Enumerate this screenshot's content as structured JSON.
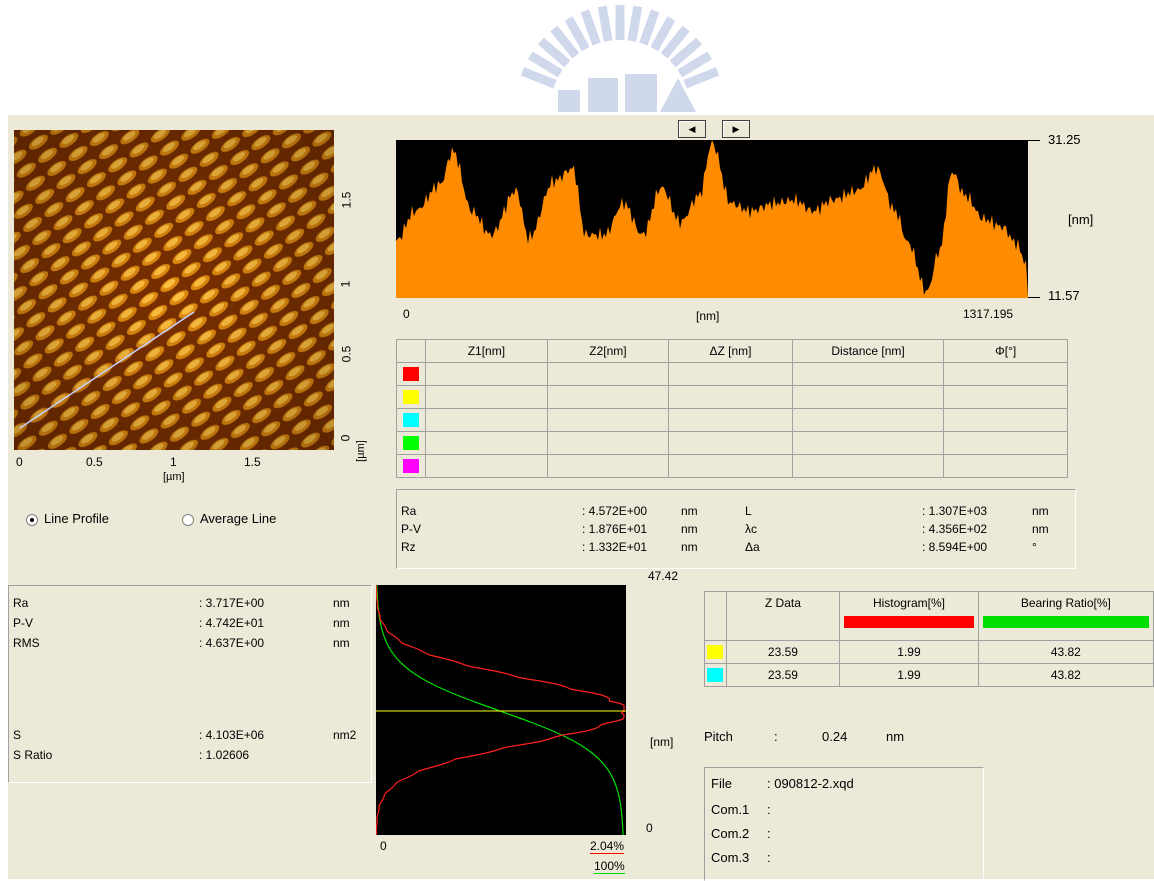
{
  "colors": {
    "profile_fill": "#ff8c00",
    "histogram": "#ff0000",
    "bearing": "#00e000",
    "cursor_yellow": "#ffff00",
    "cursor_cyan": "#00ffff",
    "cursor_red": "#ff0000",
    "cursor_green": "#00ff00",
    "cursor_magenta": "#ff00ff"
  },
  "afm_image": {
    "y_ticks": [
      "1.5",
      "1",
      "0.5",
      "0"
    ],
    "y_unit": "[µm]",
    "x_ticks": [
      "0",
      "0.5",
      "1",
      "1.5"
    ],
    "x_unit": "[µm]"
  },
  "profile_nav": {
    "prev_icon": "◀",
    "next_icon": "▶"
  },
  "profile": {
    "z_max": "31.25",
    "z_min": "11.57",
    "z_unit": "[nm]",
    "x_start": "0",
    "x_unit": "[nm]",
    "x_end": "1317.195"
  },
  "cursor_table": {
    "headers": [
      "Z1[nm]",
      "Z2[nm]",
      "ΔZ [nm]",
      "Distance [nm]",
      "Φ[°]"
    ],
    "rows": [
      {
        "color": "#ff0000"
      },
      {
        "color": "#ffff00"
      },
      {
        "color": "#00ffff"
      },
      {
        "color": "#00ff00"
      },
      {
        "color": "#ff00ff"
      }
    ]
  },
  "roughness": {
    "left": [
      {
        "name": "Ra",
        "value": ": 4.572E+00",
        "unit": "nm"
      },
      {
        "name": "P-V",
        "value": ": 1.876E+01",
        "unit": "nm"
      },
      {
        "name": "Rz",
        "value": ": 1.332E+01",
        "unit": "nm"
      }
    ],
    "right": [
      {
        "name": "L",
        "value": ": 1.307E+03",
        "unit": "nm"
      },
      {
        "name": "λc",
        "value": ": 4.356E+02",
        "unit": "nm"
      },
      {
        "name": "Δa",
        "value": ": 8.594E+00",
        "unit": "°"
      }
    ]
  },
  "modes": {
    "line_profile": "Line Profile",
    "average_line": "Average Line"
  },
  "area_stats": {
    "rows": [
      {
        "name": "Ra",
        "value": ": 3.717E+00",
        "unit": "nm"
      },
      {
        "name": "P-V",
        "value": ": 4.742E+01",
        "unit": "nm"
      },
      {
        "name": "RMS",
        "value": ": 4.637E+00",
        "unit": "nm"
      },
      {
        "name": "S",
        "value": ": 4.103E+06",
        "unit": "nm2"
      },
      {
        "name": "S Ratio",
        "value": ": 1.02606",
        "unit": ""
      }
    ]
  },
  "histogram": {
    "top_value": "47.42",
    "unit": "[nm]",
    "bottom_value": "0",
    "x_start": "0",
    "x_hist_max": "2.04%",
    "x_bearing_max": "100%"
  },
  "zdata_table": {
    "headers": [
      "Z Data",
      "Histogram[%]",
      "Bearing Ratio[%]"
    ],
    "rows": [
      {
        "color": "#ffff00",
        "z": "23.59",
        "hist": "1.99",
        "bearing": "43.82"
      },
      {
        "color": "#00ffff",
        "z": "23.59",
        "hist": "1.99",
        "bearing": "43.82"
      }
    ]
  },
  "pitch": {
    "label": "Pitch",
    "sep": ":",
    "value": "0.24",
    "unit": "nm"
  },
  "file_info": {
    "rows": [
      {
        "label": "File",
        "value": ": 090812-2.xqd"
      },
      {
        "label": "Com.1",
        "value": ":"
      },
      {
        "label": "Com.2",
        "value": ":"
      },
      {
        "label": "Com.3",
        "value": ":"
      }
    ]
  }
}
